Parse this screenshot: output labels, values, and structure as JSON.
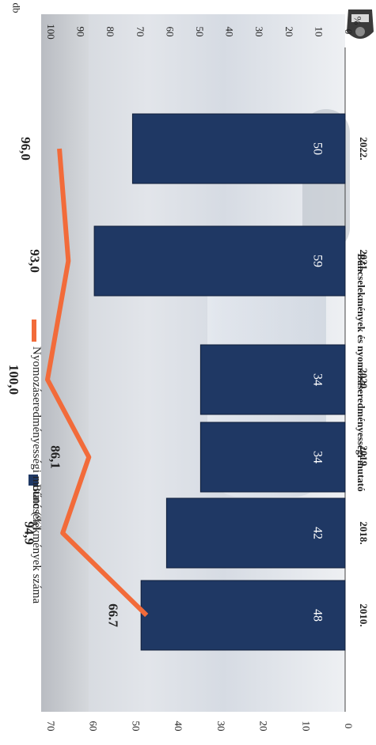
{
  "title_fragment": "Bűncselekmények és nyomozáseredményességi mutató",
  "badge_text": "POLICE",
  "left_axis_unit": "db",
  "right_axis_unit": "%",
  "legend": [
    {
      "label": "Bűncselekmények száma",
      "color": "#1f3864"
    },
    {
      "label": "Nyomozáseredményességi mutató (%)",
      "color": "#f26b3a"
    }
  ],
  "chart_data": {
    "type": "bar",
    "categories": [
      "2010.",
      "2018.",
      "2019.",
      "2020.",
      "2021.",
      "2022."
    ],
    "series": [
      {
        "name": "Bűncselekmények száma",
        "type": "bar",
        "axis": "left",
        "values": [
          48,
          42,
          34,
          34,
          59,
          50
        ],
        "labels": [
          "48",
          "42",
          "34",
          "34",
          "59",
          "50"
        ]
      },
      {
        "name": "Nyomozáseredményességi mutató (%)",
        "type": "line",
        "axis": "right",
        "values": [
          66.7,
          94.9,
          86.1,
          100.0,
          93.0,
          96.0
        ],
        "labels": [
          "66.7",
          "94,9",
          "86,1",
          "100,0",
          "93,0",
          "96,0"
        ]
      }
    ],
    "left_ylim": [
      0,
      70
    ],
    "left_ticks": [
      "0",
      "10",
      "20",
      "30",
      "40",
      "50",
      "60",
      "70"
    ],
    "right_ylim": [
      0,
      100
    ],
    "right_ticks": [
      "0",
      "10",
      "20",
      "30",
      "40",
      "50",
      "60",
      "70",
      "80",
      "90",
      "100"
    ],
    "bar_color": "#1f3864",
    "line_color": "#f26b3a",
    "grid": false,
    "legend_position": "top"
  }
}
